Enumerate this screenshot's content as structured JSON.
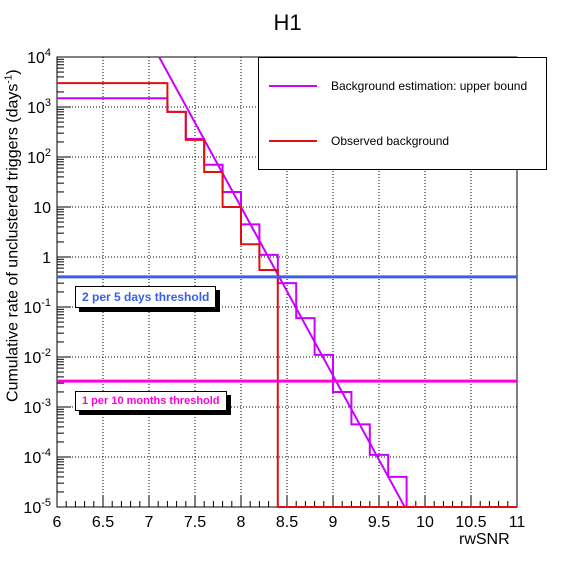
{
  "title": "H1",
  "xlabel": "rwSNR",
  "ylabel": "Cumulative rate of unclustered triggers (days",
  "ylabel_sup": "-1",
  "ylabel_close": ")",
  "legend": {
    "bg": {
      "label": "Background estimation: upper bound",
      "color": "#cc00ff"
    },
    "obs": {
      "label": "Observed background",
      "color": "#e01010"
    }
  },
  "thresholds": {
    "five_days": {
      "label": "2 per 5 days threshold",
      "color": "#3b5fe6"
    },
    "ten_months": {
      "label": "1 per 10 months threshold",
      "color": "#ff00dd"
    }
  },
  "chart_data": {
    "type": "line",
    "title": "H1",
    "xlabel": "rwSNR",
    "ylabel": "Cumulative rate of unclustered triggers (days^-1)",
    "xlim": [
      6,
      11
    ],
    "ylim": [
      1e-05,
      10000
    ],
    "y_scale": "log",
    "grid": true,
    "legend_position": "top-right",
    "x_ticks": [
      "6",
      "6.5",
      "7",
      "7.5",
      "8",
      "8.5",
      "9",
      "9.5",
      "10",
      "10.5",
      "11"
    ],
    "y_ticks": [
      {
        "base": "10",
        "exp": "-5"
      },
      {
        "base": "10",
        "exp": "-4"
      },
      {
        "base": "10",
        "exp": "-3"
      },
      {
        "base": "10",
        "exp": "-2"
      },
      {
        "base": "10",
        "exp": "-1"
      },
      {
        "base": "1",
        "exp": ""
      },
      {
        "base": "10",
        "exp": ""
      },
      {
        "base": "10",
        "exp": "2"
      },
      {
        "base": "10",
        "exp": "3"
      },
      {
        "base": "10",
        "exp": "4"
      }
    ],
    "series": [
      {
        "name": "Background estimation: upper bound",
        "style": "step",
        "color": "#cc00ff",
        "edges": [
          6.0,
          7.2,
          7.4,
          7.6,
          7.8,
          8.0,
          8.2,
          8.4,
          8.6,
          8.8,
          9.0,
          9.2,
          9.4,
          9.6,
          9.8,
          10.0,
          11.0
        ],
        "values": [
          1500,
          800,
          230,
          70,
          20,
          4.5,
          1.1,
          0.3,
          0.06,
          0.011,
          0.002,
          0.00045,
          0.00011,
          4e-05,
          1e-05,
          1e-05
        ]
      },
      {
        "name": "Background estimation: upper bound fit",
        "style": "line",
        "color": "#cc00ff",
        "x": [
          7.11,
          9.78
        ],
        "y": [
          10000,
          1e-05
        ]
      },
      {
        "name": "Observed background",
        "style": "step",
        "color": "#e01010",
        "edges": [
          6.0,
          7.2,
          7.4,
          7.6,
          7.8,
          8.0,
          8.2,
          8.4,
          11.0
        ],
        "values": [
          3000,
          800,
          220,
          50,
          10,
          1.8,
          0.55,
          1e-05
        ]
      },
      {
        "name": "2 per 5 days threshold",
        "style": "hline",
        "color": "#3b5fe6",
        "y": 0.4
      },
      {
        "name": "1 per 10 months threshold",
        "style": "hline",
        "color": "#ff00dd",
        "y": 0.0033
      }
    ]
  }
}
